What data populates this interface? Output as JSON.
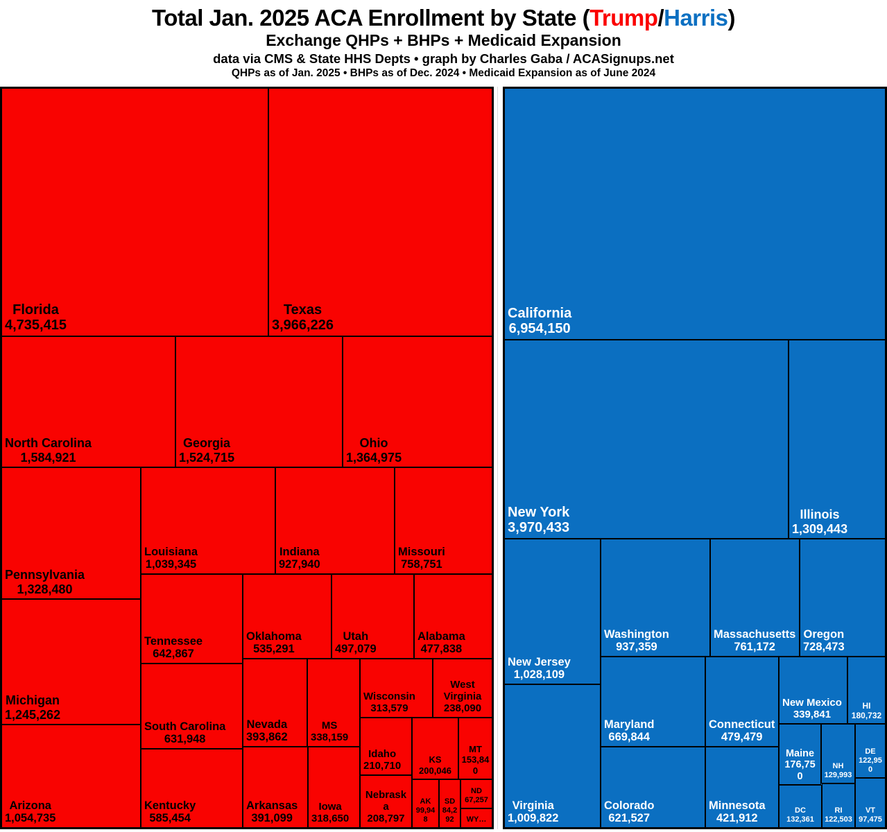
{
  "header": {
    "title_prefix": "Total Jan. 2025 ACA Enrollment by State (",
    "trump": "Trump",
    "slash": "/",
    "harris": "Harris",
    "title_suffix": ")",
    "subtitle": "Exchange QHPs + BHPs + Medicaid Expansion",
    "credit": "data via CMS & State HHS Depts • graph by Charles Gaba / ACASignups.net",
    "asof": "QHPs as of Jan. 2025 • BHPs as of Dec. 2024 • Medicaid Expansion as of June 2024"
  },
  "colors": {
    "trump_red": "#F90301",
    "harris_blue": "#0B6FC1",
    "title_trump_red": "#FB0000",
    "title_harris_blue": "#0B70C2",
    "label_on_red": "#000000",
    "label_on_blue": "#FFFFFF",
    "border": "#000000",
    "background": "#FFFFFF",
    "gridline": "#D9D9D9"
  },
  "chart_data": {
    "type": "treemap",
    "title": "Total Jan. 2025 ACA Enrollment by State (Trump/Harris)",
    "subtitle": "Exchange QHPs + BHPs + Medicaid Expansion",
    "source": "data via CMS & State HHS Depts • graph by Charles Gaba / ACASignups.net",
    "note": "QHPs as of Jan. 2025 • BHPs as of Dec. 2024 • Medicaid Expansion as of June 2024",
    "legend_position": "none",
    "series": [
      {
        "name": "Trump",
        "color": "#F90301",
        "label_color": "#000000",
        "points": [
          {
            "state": "Florida",
            "display": "4,735,415",
            "value": 4735415
          },
          {
            "state": "Texas",
            "display": "3,966,226",
            "value": 3966226
          },
          {
            "state": "North Carolina",
            "display": "1,584,921",
            "value": 1584921
          },
          {
            "state": "Georgia",
            "display": "1,524,715",
            "value": 1524715
          },
          {
            "state": "Ohio",
            "display": "1,364,975",
            "value": 1364975
          },
          {
            "state": "Pennsylvania",
            "display": "1,328,480",
            "value": 1328480
          },
          {
            "state": "Michigan",
            "display": "1,245,262",
            "value": 1245262
          },
          {
            "state": "Arizona",
            "display": "1,054,735",
            "value": 1054735
          },
          {
            "state": "Louisiana",
            "display": "1,039,345",
            "value": 1039345
          },
          {
            "state": "Indiana",
            "display": "927,940",
            "value": 927940
          },
          {
            "state": "Missouri",
            "display": "758,751",
            "value": 758751
          },
          {
            "state": "Tennessee",
            "display": "642,867",
            "value": 642867
          },
          {
            "state": "South Carolina",
            "display": "631,948",
            "value": 631948
          },
          {
            "state": "Kentucky",
            "display": "585,454",
            "value": 585454
          },
          {
            "state": "Oklahoma",
            "display": "535,291",
            "value": 535291
          },
          {
            "state": "Utah",
            "display": "497,079",
            "value": 497079
          },
          {
            "state": "Alabama",
            "display": "477,838",
            "value": 477838
          },
          {
            "state": "Nevada",
            "display": "393,862",
            "value": 393862
          },
          {
            "state": "Arkansas",
            "display": "391,099",
            "value": 391099
          },
          {
            "state": "MS",
            "display": "338,159",
            "value": 338159
          },
          {
            "state": "Iowa",
            "display": "318,650",
            "value": 318650
          },
          {
            "state": "Wisconsin",
            "display": "313,579",
            "value": 313579
          },
          {
            "state": "West Virginia",
            "display": "238,090",
            "value": 238090
          },
          {
            "state": "Idaho",
            "display": "210,710",
            "value": 210710
          },
          {
            "state": "Nebraska",
            "display": "208,797",
            "value": 208797
          },
          {
            "state": "KS",
            "display": "200,046",
            "value": 200046
          },
          {
            "state": "MT",
            "display": "153,840",
            "value": 153840
          },
          {
            "state": "AK",
            "display": "99,948",
            "value": 99948
          },
          {
            "state": "SD",
            "display": "84,292",
            "value": 84292
          },
          {
            "state": "ND",
            "display": "67,257",
            "value": 67257
          },
          {
            "state": "WY…",
            "display": "",
            "value": null
          }
        ]
      },
      {
        "name": "Harris",
        "color": "#0B6FC1",
        "label_color": "#FFFFFF",
        "points": [
          {
            "state": "California",
            "display": "6,954,150",
            "value": 6954150
          },
          {
            "state": "New York",
            "display": "3,970,433",
            "value": 3970433
          },
          {
            "state": "Illinois",
            "display": "1,309,443",
            "value": 1309443
          },
          {
            "state": "New Jersey",
            "display": "1,028,109",
            "value": 1028109
          },
          {
            "state": "Virginia",
            "display": "1,009,822",
            "value": 1009822
          },
          {
            "state": "Washington",
            "display": "937,359",
            "value": 937359
          },
          {
            "state": "Massachusetts",
            "display": "761,172",
            "value": 761172
          },
          {
            "state": "Oregon",
            "display": "728,473",
            "value": 728473
          },
          {
            "state": "Maryland",
            "display": "669,844",
            "value": 669844
          },
          {
            "state": "Colorado",
            "display": "621,527",
            "value": 621527
          },
          {
            "state": "Connecticut",
            "display": "479,479",
            "value": 479479
          },
          {
            "state": "Minnesota",
            "display": "421,912",
            "value": 421912
          },
          {
            "state": "New Mexico",
            "display": "339,841",
            "value": 339841
          },
          {
            "state": "HI",
            "display": "180,732",
            "value": 180732
          },
          {
            "state": "Maine",
            "display": "176,750",
            "value": 176750
          },
          {
            "state": "DC",
            "display": "132,361",
            "value": 132361
          },
          {
            "state": "NH",
            "display": "129,993",
            "value": 129993
          },
          {
            "state": "DE",
            "display": "122,950",
            "value": 122950
          },
          {
            "state": "RI",
            "display": "122,503",
            "value": 122503
          },
          {
            "state": "VT",
            "display": "97,475",
            "value": 97475
          }
        ]
      }
    ]
  }
}
